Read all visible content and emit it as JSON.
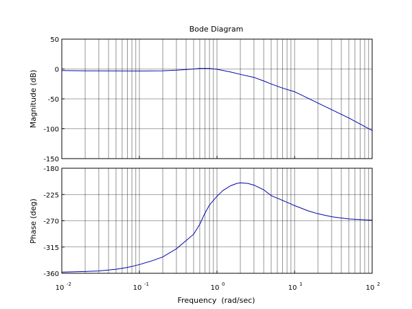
{
  "chart_data": [
    {
      "type": "line",
      "title": "Bode Diagram",
      "xlabel": "",
      "ylabel": "Magnitude (dB)",
      "xscale": "log",
      "xlim": [
        0.01,
        100
      ],
      "ylim": [
        -150,
        50
      ],
      "yticks": [
        50,
        0,
        -50,
        -100,
        -150
      ],
      "grid": true,
      "series": [
        {
          "color": "#0000aa",
          "x": [
            0.01,
            0.02,
            0.05,
            0.1,
            0.2,
            0.3,
            0.5,
            0.6,
            0.8,
            1.0,
            1.5,
            2.0,
            3.0,
            4.0,
            5.0,
            7.0,
            10.0,
            20.0,
            30.0,
            50.0,
            100.0
          ],
          "y": [
            -2.5,
            -3.0,
            -3.2,
            -3.3,
            -3.0,
            -2.0,
            0.0,
            1.0,
            1.0,
            -0.5,
            -5.0,
            -9.0,
            -14.0,
            -20.0,
            -25.0,
            -32.0,
            -38.0,
            -57.0,
            -68.0,
            -82.0,
            -103.0
          ]
        }
      ]
    },
    {
      "type": "line",
      "title": "",
      "xlabel": "Frequency  (rad/sec)",
      "ylabel": "Phase (deg)",
      "xscale": "log",
      "xlim": [
        0.01,
        100
      ],
      "ylim": [
        -360,
        -180
      ],
      "yticks": [
        -180,
        -225,
        -270,
        -315,
        -360
      ],
      "xticks": [
        {
          "value": 0.01,
          "base": "10",
          "exp": "-2"
        },
        {
          "value": 0.1,
          "base": "10",
          "exp": "-1"
        },
        {
          "value": 1,
          "base": "10",
          "exp": "0"
        },
        {
          "value": 10,
          "base": "10",
          "exp": "1"
        },
        {
          "value": 100,
          "base": "10",
          "exp": "2"
        }
      ],
      "grid": true,
      "series": [
        {
          "color": "#0000aa",
          "x": [
            0.01,
            0.02,
            0.03,
            0.05,
            0.07,
            0.1,
            0.15,
            0.2,
            0.3,
            0.4,
            0.5,
            0.6,
            0.7,
            0.8,
            1.0,
            1.2,
            1.5,
            1.8,
            2.0,
            2.5,
            3.0,
            4.0,
            5.0,
            7.0,
            10.0,
            15.0,
            20.0,
            30.0,
            50.0,
            70.0,
            100.0
          ],
          "y": [
            -358,
            -357,
            -356,
            -353,
            -350,
            -345,
            -338,
            -332,
            -318,
            -304,
            -293,
            -276,
            -257,
            -243,
            -228,
            -218,
            -210,
            -206,
            -205,
            -206,
            -209,
            -217,
            -227,
            -235,
            -244,
            -253,
            -258,
            -263,
            -267,
            -268,
            -269
          ]
        }
      ]
    }
  ]
}
